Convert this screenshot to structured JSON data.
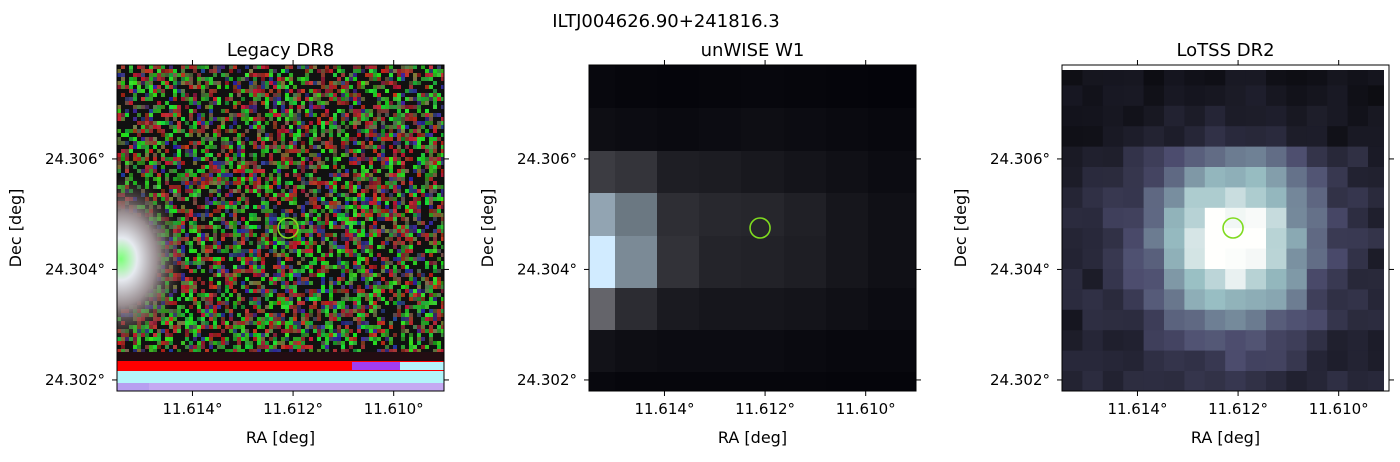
{
  "figure": {
    "suptitle": "ILTJ004626.90+241816.3",
    "marker_color": "#7fdb1f"
  },
  "chart_data": [
    {
      "type": "heatmap",
      "title": "Legacy DR8",
      "xlabel": "RA [deg]",
      "ylabel": "Dec [deg]",
      "xlim": [
        11.6155,
        11.609
      ],
      "ylim": [
        24.3018,
        24.3077
      ],
      "xticks": [
        11.614,
        11.612,
        11.61
      ],
      "xtick_labels": [
        "11.614°",
        "11.612°",
        "11.610°"
      ],
      "yticks": [
        24.302,
        24.304,
        24.306
      ],
      "ytick_labels": [
        "24.302°",
        "24.304°",
        "24.306°"
      ],
      "marker": {
        "ra": 11.6121,
        "dec": 24.30475
      },
      "image": "rgb-noise"
    },
    {
      "type": "heatmap",
      "title": "unWISE W1",
      "xlabel": "RA [deg]",
      "ylabel": "Dec [deg]",
      "xlim": [
        11.6155,
        11.609
      ],
      "ylim": [
        24.3018,
        24.3077
      ],
      "xticks": [
        11.614,
        11.612,
        11.61
      ],
      "xtick_labels": [
        "11.614°",
        "11.612°",
        "11.610°"
      ],
      "yticks": [
        24.302,
        24.304,
        24.306
      ],
      "ytick_labels": [
        "24.302°",
        "24.304°",
        "24.306°"
      ],
      "marker": {
        "ra": 11.6121,
        "dec": 24.30475
      },
      "image": "grayscale"
    },
    {
      "type": "heatmap",
      "title": "LoTSS DR2",
      "xlabel": "RA [deg]",
      "ylabel": "Dec [deg]",
      "xlim": [
        11.6155,
        11.609
      ],
      "ylim": [
        24.3018,
        24.3077
      ],
      "xticks": [
        11.614,
        11.612,
        11.61
      ],
      "xtick_labels": [
        "11.614°",
        "11.612°",
        "11.610°"
      ],
      "yticks": [
        24.302,
        24.304,
        24.306
      ],
      "ytick_labels": [
        "24.302°",
        "24.304°",
        "24.306°"
      ],
      "marker": {
        "ra": 11.6121,
        "dec": 24.30475
      },
      "image": "bone"
    }
  ]
}
